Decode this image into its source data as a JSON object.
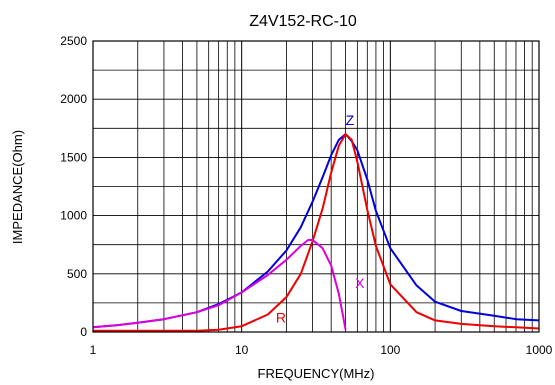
{
  "chart_data": {
    "type": "line",
    "title": "Z4V152-RC-10",
    "xlabel": "FREQUENCY(MHz)",
    "ylabel": "IMPEDANCE(Ohm)",
    "x_scale": "log",
    "xlim": [
      1,
      1000
    ],
    "ylim": [
      0,
      2500
    ],
    "x_ticks": [
      1,
      10,
      100,
      1000
    ],
    "x_tick_labels": [
      "1",
      "10",
      "100",
      "1000"
    ],
    "y_ticks": [
      0,
      500,
      1000,
      1500,
      2000,
      2500
    ],
    "y_tick_labels": [
      "0",
      "500",
      "1000",
      "1500",
      "2000",
      "2500"
    ],
    "grid": true,
    "series": [
      {
        "name": "Z",
        "color": "#0000dd",
        "x": [
          1,
          1.5,
          2,
          3,
          5,
          7,
          10,
          15,
          20,
          25,
          30,
          35,
          40,
          45,
          50,
          55,
          60,
          70,
          80,
          100,
          150,
          200,
          300,
          500,
          700,
          1000
        ],
        "y": [
          40,
          60,
          80,
          110,
          170,
          240,
          340,
          520,
          700,
          900,
          1120,
          1330,
          1520,
          1650,
          1700,
          1640,
          1560,
          1310,
          1040,
          720,
          400,
          260,
          180,
          140,
          110,
          100
        ]
      },
      {
        "name": "R",
        "color": "#ee0000",
        "x": [
          1,
          3,
          5,
          7,
          10,
          15,
          20,
          25,
          30,
          35,
          40,
          45,
          50,
          55,
          60,
          70,
          80,
          100,
          150,
          200,
          300,
          500,
          700,
          1000
        ],
        "y": [
          10,
          10,
          10,
          20,
          50,
          150,
          300,
          500,
          780,
          1060,
          1370,
          1600,
          1700,
          1650,
          1460,
          1050,
          740,
          410,
          170,
          100,
          70,
          50,
          40,
          30
        ]
      },
      {
        "name": "X",
        "color": "#dd00dd",
        "x": [
          1,
          1.5,
          2,
          3,
          5,
          7,
          10,
          15,
          20,
          25,
          28,
          30,
          35,
          40,
          45,
          50
        ],
        "y": [
          40,
          60,
          80,
          110,
          170,
          230,
          340,
          490,
          620,
          740,
          790,
          790,
          720,
          570,
          330,
          20
        ]
      }
    ],
    "annotations": [
      {
        "text": "Z",
        "x": 50,
        "y": 1780,
        "color": "#0000dd"
      },
      {
        "text": "R",
        "x": 17,
        "y": 80,
        "color": "#ee0000"
      },
      {
        "text": "X",
        "x": 58,
        "y": 380,
        "color": "#dd00dd"
      }
    ]
  }
}
